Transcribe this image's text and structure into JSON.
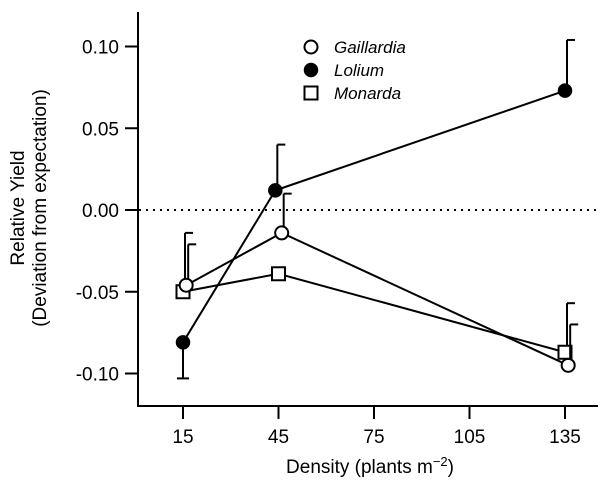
{
  "chart_data": {
    "type": "line",
    "xlabel_main": "Density (plants m",
    "xlabel_sup": "−2",
    "xlabel_end": ")",
    "ylabel_line1": "Relative Yield",
    "ylabel_line2": "(Deviation from expectation)",
    "xticks": [
      "15",
      "45",
      "75",
      "105",
      "135"
    ],
    "xtick_values": [
      15,
      45,
      75,
      105,
      135
    ],
    "yticks": [
      "0.10",
      "0.05",
      "0.00",
      "-0.05",
      "-0.10"
    ],
    "ytick_values": [
      0.1,
      0.05,
      0.0,
      -0.05,
      -0.1
    ],
    "xlim": [
      0,
      150
    ],
    "ylim": [
      -0.12,
      0.12
    ],
    "reference_line": 0.0,
    "legend_position": "top-center",
    "series": [
      {
        "name": "Gaillardia",
        "marker": "open-circle",
        "x": [
          16,
          46,
          136
        ],
        "y": [
          -0.046,
          -0.014,
          -0.095
        ],
        "error_upper": [
          -0.021,
          0.01,
          -0.07
        ]
      },
      {
        "name": "Lolium",
        "marker": "filled-circle",
        "x": [
          15,
          44,
          135
        ],
        "y": [
          -0.081,
          0.012,
          0.073
        ],
        "error_upper": [
          null,
          0.04,
          0.104
        ],
        "error_lower": [
          -0.103,
          null,
          null
        ]
      },
      {
        "name": "Monarda",
        "marker": "open-square",
        "x": [
          15,
          45,
          135
        ],
        "y": [
          -0.05,
          -0.039,
          -0.087
        ],
        "error_upper": [
          -0.014,
          null,
          -0.057
        ]
      }
    ]
  }
}
